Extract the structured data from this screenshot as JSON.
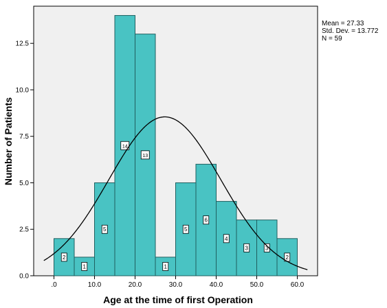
{
  "chart_data": {
    "type": "histogram",
    "xlabel": "Age at the time of first Operation",
    "ylabel": "Number of Patients",
    "xlim": [
      -5,
      65
    ],
    "ylim": [
      0,
      14.5
    ],
    "x_ticks": [
      0,
      10,
      20,
      30,
      40,
      50,
      60
    ],
    "x_tick_labels": [
      ".0",
      "10.0",
      "20.0",
      "30.0",
      "40.0",
      "50.0",
      "60.0"
    ],
    "y_ticks": [
      0,
      2.5,
      5,
      7.5,
      10,
      12.5
    ],
    "y_tick_labels": [
      "0.0",
      "2.5",
      "5.0",
      "7.5",
      "10.0",
      "12.5"
    ],
    "bin_width": 5,
    "bins": [
      {
        "start": 0,
        "end": 5,
        "count": 2
      },
      {
        "start": 5,
        "end": 10,
        "count": 1
      },
      {
        "start": 10,
        "end": 15,
        "count": 5
      },
      {
        "start": 15,
        "end": 20,
        "count": 14
      },
      {
        "start": 20,
        "end": 25,
        "count": 13
      },
      {
        "start": 25,
        "end": 30,
        "count": 1
      },
      {
        "start": 30,
        "end": 35,
        "count": 5
      },
      {
        "start": 35,
        "end": 40,
        "count": 6
      },
      {
        "start": 40,
        "end": 45,
        "count": 4
      },
      {
        "start": 45,
        "end": 50,
        "count": 3
      },
      {
        "start": 50,
        "end": 55,
        "count": 3
      },
      {
        "start": 55,
        "end": 60,
        "count": 2
      }
    ],
    "normal_curve": {
      "mean": 27.33,
      "std_dev": 13.772,
      "n": 59
    },
    "stats_lines": [
      {
        "label": "Mean = ",
        "value": "27.33"
      },
      {
        "label": "Std. Dev. = ",
        "value": "13.772"
      },
      {
        "label": "N = ",
        "value": "59"
      }
    ],
    "grid": false,
    "colors": {
      "bar_fill": "#49c3c3",
      "bar_stroke": "#1f5f5f",
      "plot_background": "#f0f0f0",
      "curve": "#000000"
    }
  }
}
